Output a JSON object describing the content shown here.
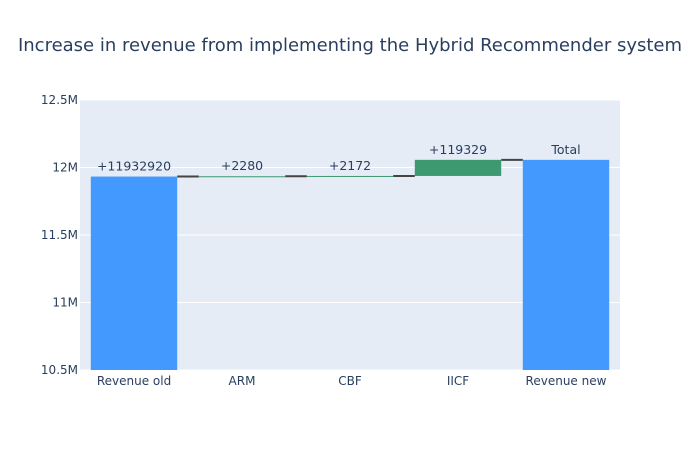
{
  "chart_data": {
    "type": "waterfall",
    "title": "Increase in revenue from implementing the Hybrid Recommender system",
    "xlabel": "",
    "ylabel": "",
    "ylim": [
      10500000,
      12500000
    ],
    "y_ticks": [
      10500000,
      11000000,
      11500000,
      12000000,
      12500000
    ],
    "y_tick_labels": [
      "10.5M",
      "11M",
      "11.5M",
      "12M",
      "12.5M"
    ],
    "categories": [
      "Revenue old",
      "ARM",
      "CBF",
      "IICF",
      "Revenue new"
    ],
    "measures": [
      "absolute",
      "relative",
      "relative",
      "relative",
      "total"
    ],
    "values": [
      11932920,
      2280,
      2172,
      119329,
      12056701
    ],
    "text_labels": [
      "+11932920",
      "+2280",
      "+2172",
      "+119329",
      "Total"
    ],
    "colors": {
      "absolute": "#4499ff",
      "increase": "#3d9970",
      "total": "#4499ff",
      "connector": "#444444",
      "plot_bg": "#e5ecf6",
      "grid": "#ffffff"
    }
  }
}
